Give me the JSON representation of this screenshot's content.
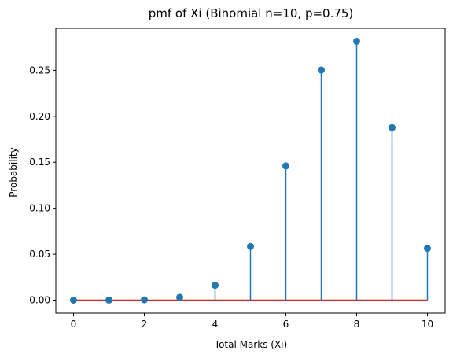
{
  "chart_data": {
    "type": "stem",
    "title": "pmf of Xi (Binomial n=10, p=0.75)",
    "xlabel": "Total Marks (Xi)",
    "ylabel": "Probability",
    "x": [
      0,
      1,
      2,
      3,
      4,
      5,
      6,
      7,
      8,
      9,
      10
    ],
    "values": [
      9.5e-07,
      2.86e-05,
      0.000386,
      0.00309,
      0.0162,
      0.0584,
      0.146,
      0.2503,
      0.2816,
      0.1877,
      0.0563
    ],
    "xlim": [
      -0.5,
      10.5
    ],
    "ylim": [
      -0.0141,
      0.2957
    ],
    "xticks": [
      0,
      2,
      4,
      6,
      8,
      10
    ],
    "xtick_labels": [
      "0",
      "2",
      "4",
      "6",
      "8",
      "10"
    ],
    "yticks": [
      0.0,
      0.05,
      0.1,
      0.15,
      0.2,
      0.25
    ],
    "ytick_labels": [
      "0.00",
      "0.05",
      "0.10",
      "0.15",
      "0.20",
      "0.25"
    ],
    "grid": false,
    "colors": {
      "stem": "#1f77b4",
      "marker": "#1f77b4",
      "baseline": "#d62728"
    }
  }
}
